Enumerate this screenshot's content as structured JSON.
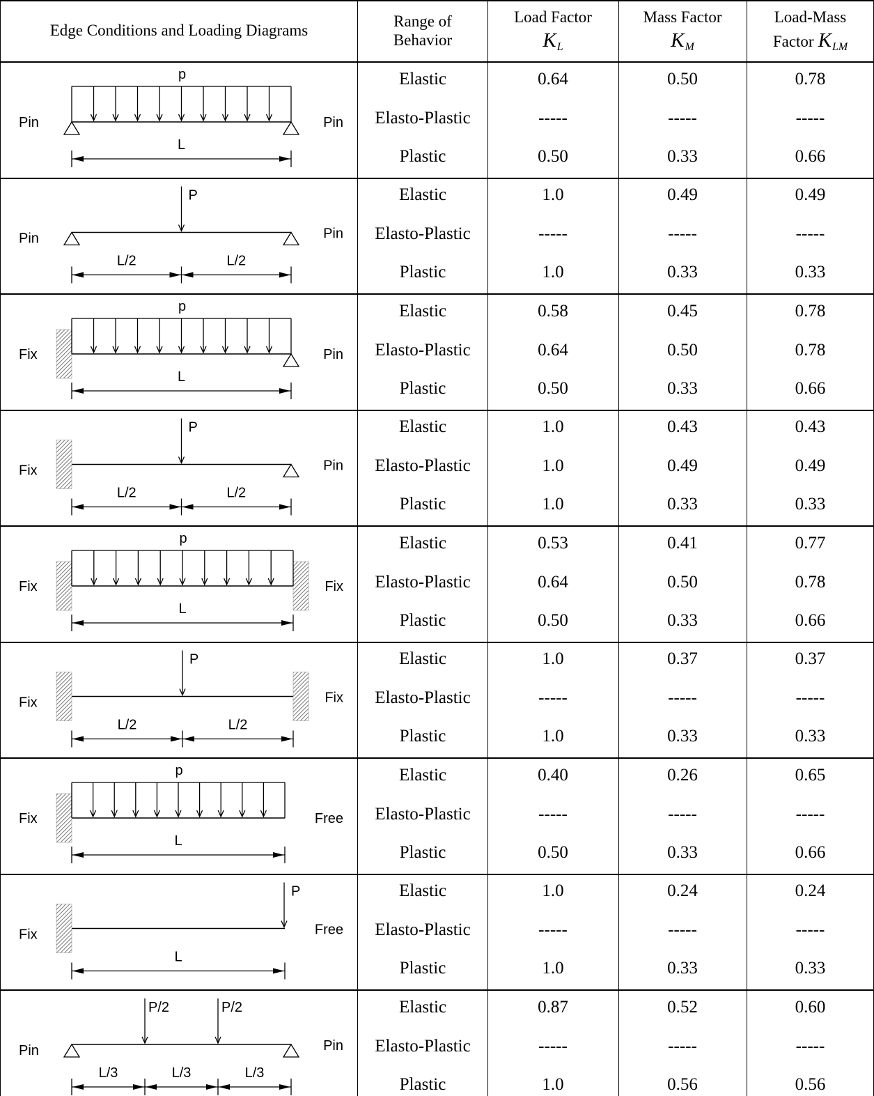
{
  "header": {
    "edge_conditions": "Edge Conditions and Loading Diagrams",
    "range_line1": "Range of",
    "range_line2": "Behavior",
    "load_line1": "Load Factor",
    "load_symbol": "K",
    "load_sub": "L",
    "mass_line1": "Mass Factor",
    "mass_symbol": "K",
    "mass_sub": "M",
    "lm_line1": "Load-Mass",
    "lm_line2": "Factor",
    "lm_symbol": "K",
    "lm_sub": "LM"
  },
  "cases": [
    {
      "left_support": "Pin",
      "right_support": "Pin",
      "load_label": "p",
      "spans": [
        "L"
      ],
      "rows": [
        {
          "range": "Elastic",
          "kl": "0.64",
          "km": "0.50",
          "klm": "0.78"
        },
        {
          "range": "Elasto-Plastic",
          "kl": "-----",
          "km": "-----",
          "klm": "-----"
        },
        {
          "range": "Plastic",
          "kl": "0.50",
          "km": "0.33",
          "klm": "0.66"
        }
      ]
    },
    {
      "left_support": "Pin",
      "right_support": "Pin",
      "load_label": "P",
      "spans": [
        "L/2",
        "L/2"
      ],
      "rows": [
        {
          "range": "Elastic",
          "kl": "1.0",
          "km": "0.49",
          "klm": "0.49"
        },
        {
          "range": "Elasto-Plastic",
          "kl": "-----",
          "km": "-----",
          "klm": "-----"
        },
        {
          "range": "Plastic",
          "kl": "1.0",
          "km": "0.33",
          "klm": "0.33"
        }
      ]
    },
    {
      "left_support": "Fix",
      "right_support": "Pin",
      "load_label": "p",
      "spans": [
        "L"
      ],
      "rows": [
        {
          "range": "Elastic",
          "kl": "0.58",
          "km": "0.45",
          "klm": "0.78"
        },
        {
          "range": "Elasto-Plastic",
          "kl": "0.64",
          "km": "0.50",
          "klm": "0.78"
        },
        {
          "range": "Plastic",
          "kl": "0.50",
          "km": "0.33",
          "klm": "0.66"
        }
      ]
    },
    {
      "left_support": "Fix",
      "right_support": "Pin",
      "load_label": "P",
      "spans": [
        "L/2",
        "L/2"
      ],
      "rows": [
        {
          "range": "Elastic",
          "kl": "1.0",
          "km": "0.43",
          "klm": "0.43"
        },
        {
          "range": "Elasto-Plastic",
          "kl": "1.0",
          "km": "0.49",
          "klm": "0.49"
        },
        {
          "range": "Plastic",
          "kl": "1.0",
          "km": "0.33",
          "klm": "0.33"
        }
      ]
    },
    {
      "left_support": "Fix",
      "right_support": "Fix",
      "load_label": "p",
      "spans": [
        "L"
      ],
      "rows": [
        {
          "range": "Elastic",
          "kl": "0.53",
          "km": "0.41",
          "klm": "0.77"
        },
        {
          "range": "Elasto-Plastic",
          "kl": "0.64",
          "km": "0.50",
          "klm": "0.78"
        },
        {
          "range": "Plastic",
          "kl": "0.50",
          "km": "0.33",
          "klm": "0.66"
        }
      ]
    },
    {
      "left_support": "Fix",
      "right_support": "Fix",
      "load_label": "P",
      "spans": [
        "L/2",
        "L/2"
      ],
      "rows": [
        {
          "range": "Elastic",
          "kl": "1.0",
          "km": "0.37",
          "klm": "0.37"
        },
        {
          "range": "Elasto-Plastic",
          "kl": "-----",
          "km": "-----",
          "klm": "-----"
        },
        {
          "range": "Plastic",
          "kl": "1.0",
          "km": "0.33",
          "klm": "0.33"
        }
      ]
    },
    {
      "left_support": "Fix",
      "right_support": "Free",
      "load_label": "p",
      "spans": [
        "L"
      ],
      "rows": [
        {
          "range": "Elastic",
          "kl": "0.40",
          "km": "0.26",
          "klm": "0.65"
        },
        {
          "range": "Elasto-Plastic",
          "kl": "-----",
          "km": "-----",
          "klm": "-----"
        },
        {
          "range": "Plastic",
          "kl": "0.50",
          "km": "0.33",
          "klm": "0.66"
        }
      ]
    },
    {
      "left_support": "Fix",
      "right_support": "Free",
      "load_label": "P",
      "spans": [
        "L"
      ],
      "rows": [
        {
          "range": "Elastic",
          "kl": "1.0",
          "km": "0.24",
          "klm": "0.24"
        },
        {
          "range": "Elasto-Plastic",
          "kl": "-----",
          "km": "-----",
          "klm": "-----"
        },
        {
          "range": "Plastic",
          "kl": "1.0",
          "km": "0.33",
          "klm": "0.33"
        }
      ]
    },
    {
      "left_support": "Pin",
      "right_support": "Pin",
      "load_labels": [
        "P/2",
        "P/2"
      ],
      "spans": [
        "L/3",
        "L/3",
        "L/3"
      ],
      "rows": [
        {
          "range": "Elastic",
          "kl": "0.87",
          "km": "0.52",
          "klm": "0.60"
        },
        {
          "range": "Elasto-Plastic",
          "kl": "-----",
          "km": "-----",
          "klm": "-----"
        },
        {
          "range": "Plastic",
          "kl": "1.0",
          "km": "0.56",
          "klm": "0.56"
        }
      ]
    }
  ]
}
